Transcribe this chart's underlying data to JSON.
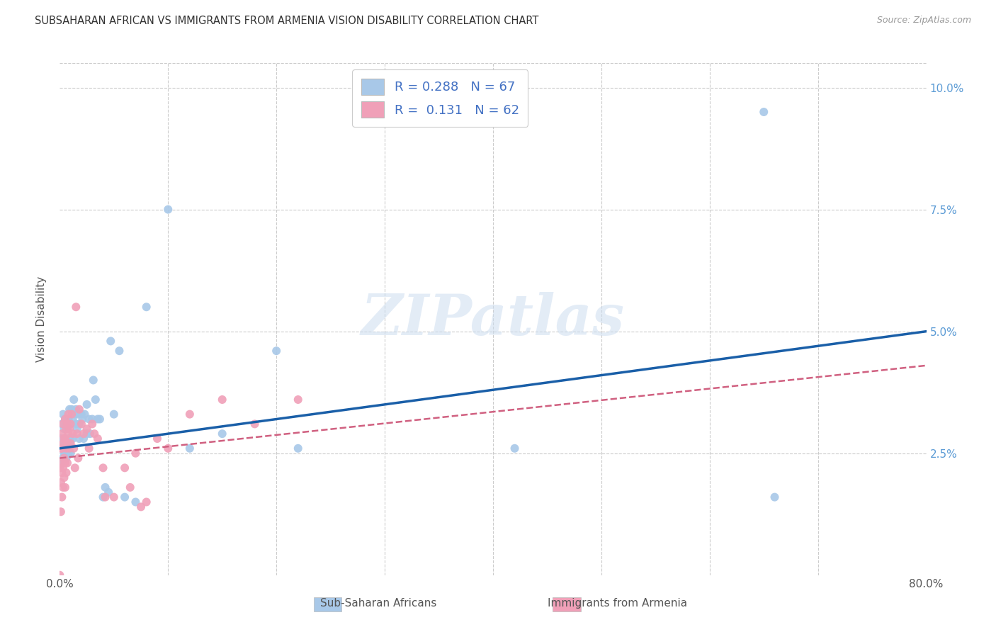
{
  "title": "SUBSAHARAN AFRICAN VS IMMIGRANTS FROM ARMENIA VISION DISABILITY CORRELATION CHART",
  "source": "Source: ZipAtlas.com",
  "ylabel": "Vision Disability",
  "legend_label1": "Sub-Saharan Africans",
  "legend_label2": "Immigrants from Armenia",
  "color_blue": "#a8c8e8",
  "color_pink": "#f0a0b8",
  "line_blue": "#1a5fa8",
  "line_pink": "#d06080",
  "background": "#ffffff",
  "watermark": "ZIPatlas",
  "xlim": [
    0.0,
    0.8
  ],
  "ylim": [
    0.0,
    0.105
  ],
  "x_ticks": [
    0.0,
    0.1,
    0.2,
    0.3,
    0.4,
    0.5,
    0.6,
    0.7,
    0.8
  ],
  "x_tick_labels": [
    "0.0%",
    "",
    "",
    "",
    "",
    "",
    "",
    "",
    "80.0%"
  ],
  "y_ticks": [
    0.0,
    0.025,
    0.05,
    0.075,
    0.1
  ],
  "y_tick_labels_right": [
    "",
    "2.5%",
    "5.0%",
    "7.5%",
    "10.0%"
  ],
  "blue_line_x": [
    0.0,
    0.8
  ],
  "blue_line_y": [
    0.026,
    0.05
  ],
  "pink_line_x": [
    0.0,
    0.8
  ],
  "pink_line_y": [
    0.024,
    0.043
  ],
  "blue_points_x": [
    0.001,
    0.001,
    0.002,
    0.002,
    0.003,
    0.003,
    0.003,
    0.004,
    0.004,
    0.004,
    0.005,
    0.005,
    0.005,
    0.006,
    0.006,
    0.006,
    0.007,
    0.007,
    0.008,
    0.008,
    0.008,
    0.009,
    0.009,
    0.01,
    0.01,
    0.01,
    0.011,
    0.012,
    0.012,
    0.013,
    0.014,
    0.015,
    0.015,
    0.016,
    0.017,
    0.018,
    0.018,
    0.02,
    0.021,
    0.022,
    0.023,
    0.025,
    0.025,
    0.027,
    0.028,
    0.03,
    0.031,
    0.033,
    0.035,
    0.037,
    0.04,
    0.042,
    0.045,
    0.047,
    0.05,
    0.055,
    0.06,
    0.07,
    0.08,
    0.1,
    0.12,
    0.15,
    0.2,
    0.22,
    0.42,
    0.65,
    0.66
  ],
  "blue_points_y": [
    0.028,
    0.023,
    0.031,
    0.026,
    0.033,
    0.027,
    0.024,
    0.03,
    0.027,
    0.025,
    0.032,
    0.028,
    0.025,
    0.031,
    0.027,
    0.024,
    0.03,
    0.026,
    0.032,
    0.028,
    0.025,
    0.034,
    0.027,
    0.031,
    0.028,
    0.025,
    0.034,
    0.032,
    0.028,
    0.036,
    0.033,
    0.034,
    0.031,
    0.03,
    0.033,
    0.031,
    0.028,
    0.033,
    0.032,
    0.028,
    0.033,
    0.029,
    0.035,
    0.032,
    0.029,
    0.032,
    0.04,
    0.036,
    0.032,
    0.032,
    0.016,
    0.018,
    0.017,
    0.048,
    0.033,
    0.046,
    0.016,
    0.015,
    0.055,
    0.075,
    0.026,
    0.029,
    0.046,
    0.026,
    0.026,
    0.095,
    0.016
  ],
  "pink_points_x": [
    0.0,
    0.0,
    0.001,
    0.001,
    0.001,
    0.001,
    0.002,
    0.002,
    0.002,
    0.002,
    0.003,
    0.003,
    0.003,
    0.003,
    0.004,
    0.004,
    0.004,
    0.005,
    0.005,
    0.005,
    0.005,
    0.006,
    0.006,
    0.006,
    0.007,
    0.007,
    0.007,
    0.008,
    0.008,
    0.009,
    0.009,
    0.01,
    0.01,
    0.011,
    0.012,
    0.013,
    0.014,
    0.015,
    0.016,
    0.017,
    0.018,
    0.02,
    0.022,
    0.025,
    0.027,
    0.03,
    0.032,
    0.035,
    0.04,
    0.042,
    0.05,
    0.06,
    0.065,
    0.07,
    0.075,
    0.08,
    0.09,
    0.1,
    0.12,
    0.15,
    0.18,
    0.22
  ],
  "pink_points_y": [
    0.0,
    0.022,
    0.026,
    0.023,
    0.019,
    0.013,
    0.029,
    0.026,
    0.021,
    0.016,
    0.031,
    0.027,
    0.022,
    0.018,
    0.028,
    0.024,
    0.02,
    0.032,
    0.028,
    0.023,
    0.018,
    0.03,
    0.026,
    0.021,
    0.031,
    0.027,
    0.023,
    0.033,
    0.029,
    0.03,
    0.026,
    0.031,
    0.027,
    0.033,
    0.029,
    0.026,
    0.022,
    0.055,
    0.029,
    0.024,
    0.034,
    0.031,
    0.029,
    0.03,
    0.026,
    0.031,
    0.029,
    0.028,
    0.022,
    0.016,
    0.016,
    0.022,
    0.018,
    0.025,
    0.014,
    0.015,
    0.028,
    0.026,
    0.033,
    0.036,
    0.031,
    0.036
  ]
}
